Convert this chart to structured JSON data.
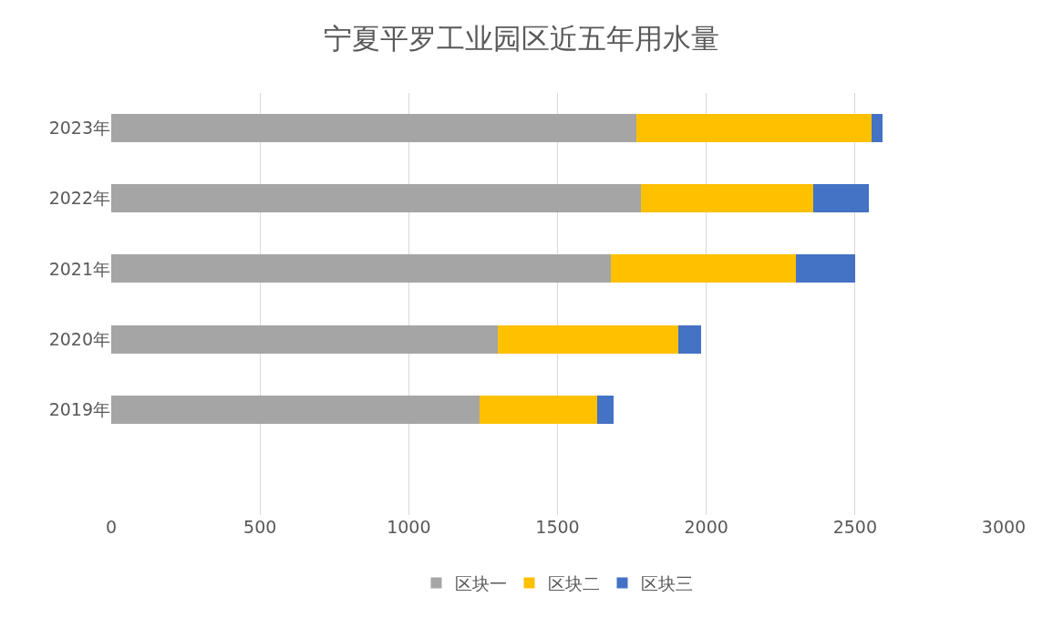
{
  "chart_data": {
    "type": "bar",
    "orientation": "horizontal",
    "stacked": true,
    "title": "宁夏平罗工业园区近五年用水量",
    "categories": [
      "2023年",
      "2022年",
      "2021年",
      "2020年",
      "2019年",
      null
    ],
    "series": [
      {
        "name": "区块一",
        "color": "#a5a5a5",
        "values": [
          1766,
          1780,
          1679,
          1300,
          1238,
          null
        ]
      },
      {
        "name": "区块二",
        "color": "#ffc000",
        "values": [
          789,
          580,
          622,
          605,
          394,
          null
        ]
      },
      {
        "name": "区块三",
        "color": "#4472c4",
        "values": [
          38,
          187,
          200,
          77,
          57,
          null
        ]
      }
    ],
    "xlim": [
      0,
      3000
    ],
    "xticks": [
      0,
      500,
      1000,
      1500,
      2000,
      2500,
      3000
    ],
    "grid": "x",
    "legend": "bottom"
  }
}
